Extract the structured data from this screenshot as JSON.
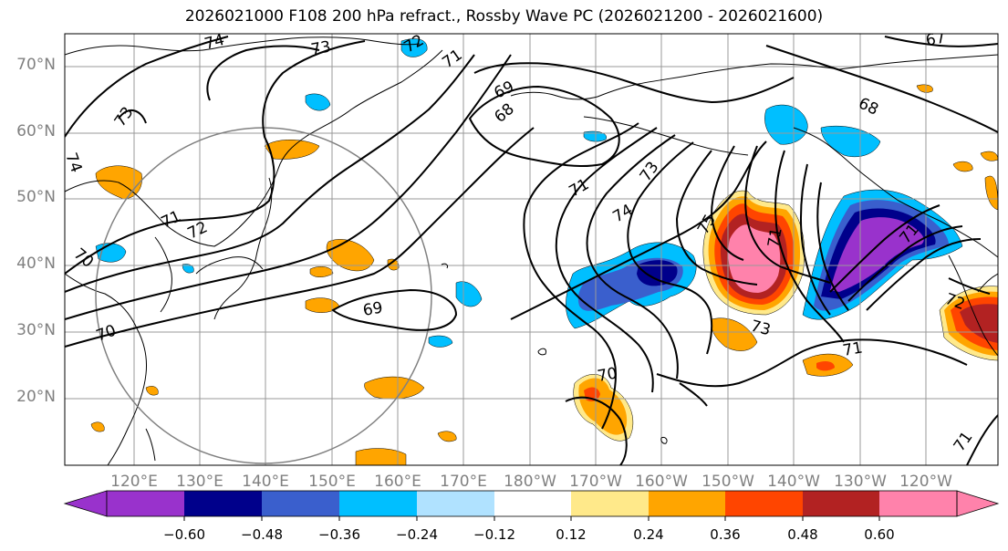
{
  "title": "2026021000 F108 200 hPa refract., Rossby Wave PC (2026021200 - 2026021600)",
  "lat_labels": [
    "70°N",
    "60°N",
    "50°N",
    "40°N",
    "30°N",
    "20°N"
  ],
  "lon_labels": [
    "120°E",
    "130°E",
    "140°E",
    "150°E",
    "160°E",
    "170°E",
    "180°W",
    "170°W",
    "160°W",
    "150°W",
    "140°W",
    "130°W",
    "120°W"
  ],
  "contour_labels": [
    "74",
    "73",
    "72",
    "71",
    "69",
    "68",
    "67",
    "73",
    "74",
    "71",
    "72",
    "70",
    "74",
    "73",
    "75",
    "71",
    "71",
    "69",
    "70",
    "70",
    "73",
    "71",
    "72",
    "71",
    "68",
    "71"
  ],
  "colorbar": {
    "ticks": [
      "−0.60",
      "−0.48",
      "−0.36",
      "−0.24",
      "−0.12",
      "0.12",
      "0.24",
      "0.36",
      "0.48",
      "0.60"
    ],
    "colors": [
      "#9932cc",
      "#00008b",
      "#3a5fcd",
      "#00bfff",
      "#b0e2ff",
      "#ffffff",
      "#ffe98a",
      "#ffa500",
      "#ff4500",
      "#b22222",
      "#ff82ab",
      "#ff82ab"
    ]
  }
}
